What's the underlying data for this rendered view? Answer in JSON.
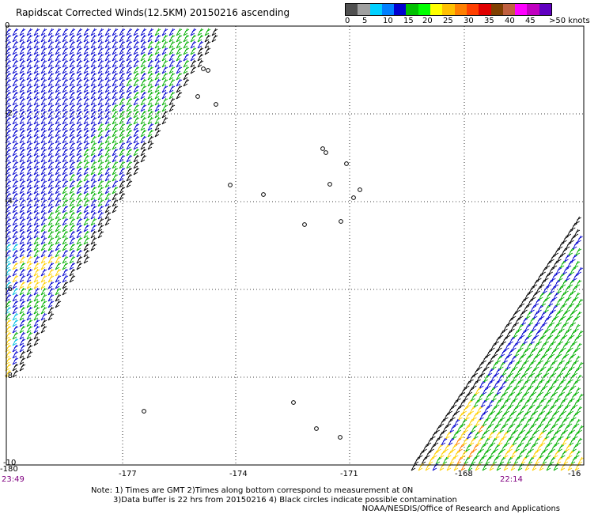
{
  "title": "Rapidscat Corrected Winds(12.5KM) 20150216 ascending",
  "legend": {
    "labels": [
      "0",
      "5",
      "10",
      "15",
      "20",
      "25",
      "30",
      "35",
      "40",
      "45",
      ">50 knots"
    ],
    "colors": [
      "#505050",
      "#a0a0a0",
      "#00d0ff",
      "#0080ff",
      "#0000d0",
      "#00c000",
      "#00ff00",
      "#ffff00",
      "#ffc000",
      "#ff8000",
      "#ff4000",
      "#e00000",
      "#804000",
      "#c06040",
      "#ff00ff",
      "#c000c0",
      "#6000c0"
    ]
  },
  "axes": {
    "x_labels": [
      "-180",
      "-177",
      "-174",
      "-171",
      "-168",
      "-16"
    ],
    "y_labels": [
      "0",
      "-2",
      "-4",
      "-6",
      "-8",
      "-10"
    ]
  },
  "times": {
    "left": "23:49",
    "right": "22:14"
  },
  "notes": {
    "line1": "Note: 1) Times are GMT 2)Times along bottom correspond to measurement at 0N",
    "line2": "3)Data buffer is 22 hrs from 20150216 4) Black circles indicate possible contamination"
  },
  "credit": "NOAA/NESDIS/Office of Research and Applications",
  "colors": {
    "barb_blue": "#0000d0",
    "barb_green": "#00b000",
    "barb_yellow": "#ffd000",
    "barb_orange": "#ff8000",
    "barb_black": "#000000",
    "barb_cyan": "#00c0e0",
    "time_color": "#800080"
  }
}
